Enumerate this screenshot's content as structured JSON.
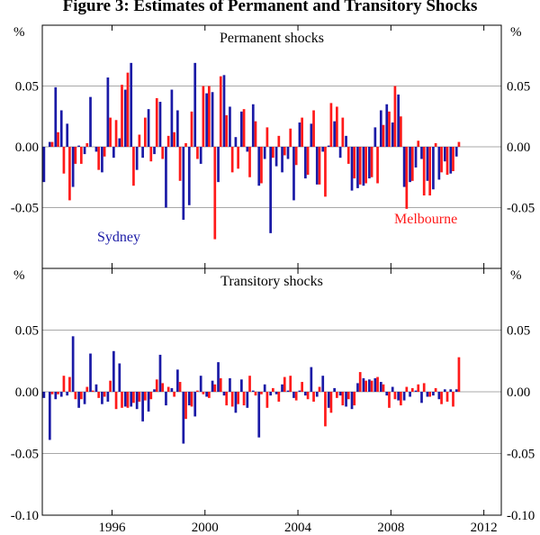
{
  "title": "Figure 3: Estimates of Permanent and Transitory Shocks",
  "colors": {
    "sydney": "#1a1aa6",
    "melbourne": "#ff1a1a",
    "grid": "#a8a8a8",
    "axis": "#000000"
  },
  "chart_data": {
    "type": "bar",
    "x_axis": {
      "start": 1993.0,
      "end": 2012.75,
      "ticks": [
        1996,
        2000,
        2004,
        2008,
        2012
      ]
    },
    "legend": [
      "Sydney",
      "Melbourne"
    ],
    "panels": [
      {
        "title": "Permanent shocks",
        "unit_label": "%",
        "ylim": [
          -0.1,
          0.1
        ],
        "yticks": [
          -0.05,
          0.0,
          0.05
        ],
        "ytick_labels": [
          "-0.05",
          "0.00",
          "0.05"
        ],
        "series_labels": {
          "sydney": "Sydney",
          "melbourne": "Melbourne"
        },
        "series": [
          {
            "name": "Sydney",
            "color": "#1a1aa6",
            "values": [
              -0.029,
              0.004,
              0.049,
              0.03,
              0.019,
              -0.033,
              0.001,
              -0.006,
              0.041,
              -0.004,
              -0.021,
              0.057,
              -0.009,
              0.007,
              0.047,
              0.069,
              -0.019,
              -0.009,
              0.031,
              -0.006,
              0.037,
              -0.05,
              0.047,
              0.03,
              -0.06,
              -0.048,
              0.069,
              -0.014,
              0.044,
              0.045,
              -0.029,
              0.059,
              0.033,
              0.008,
              0.029,
              -0.004,
              0.035,
              -0.032,
              -0.01,
              -0.071,
              -0.016,
              -0.021,
              -0.01,
              -0.044,
              0.02,
              -0.026,
              0.019,
              -0.031,
              -0.004,
              0.001,
              0.021,
              -0.009,
              0.009,
              -0.036,
              -0.034,
              -0.032,
              -0.026,
              0.016,
              0.03,
              0.035,
              0.02,
              0.043,
              -0.033,
              -0.029,
              -0.017,
              -0.01,
              -0.028,
              -0.035,
              -0.027,
              -0.012,
              -0.022,
              -0.008
            ]
          },
          {
            "name": "Melbourne",
            "color": "#ff1a1a",
            "values": [
              null,
              0.004,
              0.012,
              -0.022,
              -0.044,
              -0.014,
              -0.014,
              0.003,
              null,
              -0.019,
              -0.008,
              0.024,
              0.022,
              0.051,
              0.061,
              -0.032,
              0.01,
              0.024,
              -0.012,
              0.04,
              -0.01,
              0.009,
              0.012,
              -0.028,
              0.003,
              0.029,
              -0.01,
              0.05,
              0.05,
              -0.076,
              0.058,
              0.026,
              -0.021,
              -0.018,
              0.031,
              -0.025,
              0.021,
              -0.03,
              0.016,
              -0.009,
              0.009,
              -0.007,
              0.015,
              -0.015,
              0.024,
              -0.023,
              0.03,
              -0.031,
              -0.041,
              0.036,
              0.033,
              0.024,
              -0.014,
              -0.026,
              -0.031,
              -0.03,
              -0.025,
              -0.03,
              0.018,
              0.029,
              0.05,
              0.025,
              -0.051,
              -0.028,
              0.005,
              -0.04,
              -0.04,
              0.003,
              -0.021,
              -0.023,
              -0.02,
              0.004
            ]
          }
        ]
      },
      {
        "title": "Transitory shocks",
        "unit_label": "%",
        "ylim": [
          -0.1,
          0.1
        ],
        "yticks": [
          -0.1,
          -0.05,
          0.0,
          0.05
        ],
        "ytick_labels": [
          "-0.10",
          "-0.05",
          "0.00",
          "0.05"
        ],
        "series": [
          {
            "name": "Sydney",
            "color": "#1a1aa6",
            "values": [
              -0.005,
              -0.039,
              -0.006,
              -0.004,
              -0.003,
              0.045,
              -0.013,
              -0.01,
              0.031,
              0.006,
              -0.01,
              -0.008,
              0.033,
              0.023,
              -0.012,
              -0.012,
              -0.014,
              -0.024,
              -0.016,
              0.002,
              0.03,
              -0.011,
              0.003,
              0.018,
              -0.042,
              -0.011,
              -0.02,
              0.013,
              -0.004,
              0.009,
              0.024,
              -0.003,
              0.011,
              -0.017,
              0.01,
              -0.013,
              0.001,
              -0.037,
              0.006,
              -0.003,
              -0.002,
              0.006,
              0.001,
              -0.005,
              0.001,
              -0.003,
              0.02,
              -0.004,
              0.013,
              -0.013,
              0.003,
              -0.003,
              -0.012,
              -0.014,
              0.007,
              0.011,
              0.01,
              0.011,
              0.008,
              -0.003,
              0.004,
              -0.007,
              -0.007,
              -0.004,
              0.001,
              -0.009,
              -0.004,
              -0.003,
              -0.006,
              0.002,
              0.002,
              0.002
            ]
          },
          {
            "name": "Melbourne",
            "color": "#ff1a1a",
            "values": [
              null,
              -0.002,
              -0.002,
              0.013,
              0.012,
              -0.006,
              -0.006,
              0.004,
              0.001,
              -0.005,
              -0.004,
              0.009,
              -0.014,
              -0.013,
              -0.013,
              -0.009,
              -0.008,
              -0.007,
              -0.006,
              0.01,
              0.007,
              0.004,
              -0.004,
              0.008,
              -0.022,
              -0.012,
              0.001,
              -0.002,
              -0.005,
              0.006,
              0.011,
              -0.011,
              -0.012,
              -0.01,
              -0.011,
              0.013,
              -0.003,
              -0.002,
              -0.013,
              0.003,
              -0.008,
              0.012,
              0.013,
              -0.007,
              0.008,
              -0.006,
              -0.008,
              0.004,
              -0.028,
              -0.017,
              -0.005,
              -0.011,
              -0.006,
              -0.011,
              0.016,
              0.009,
              0.009,
              0.012,
              0.006,
              -0.013,
              -0.006,
              -0.011,
              0.004,
              0.003,
              0.006,
              0.007,
              -0.004,
              0.003,
              -0.01,
              -0.008,
              -0.012,
              0.028
            ]
          }
        ]
      }
    ]
  }
}
